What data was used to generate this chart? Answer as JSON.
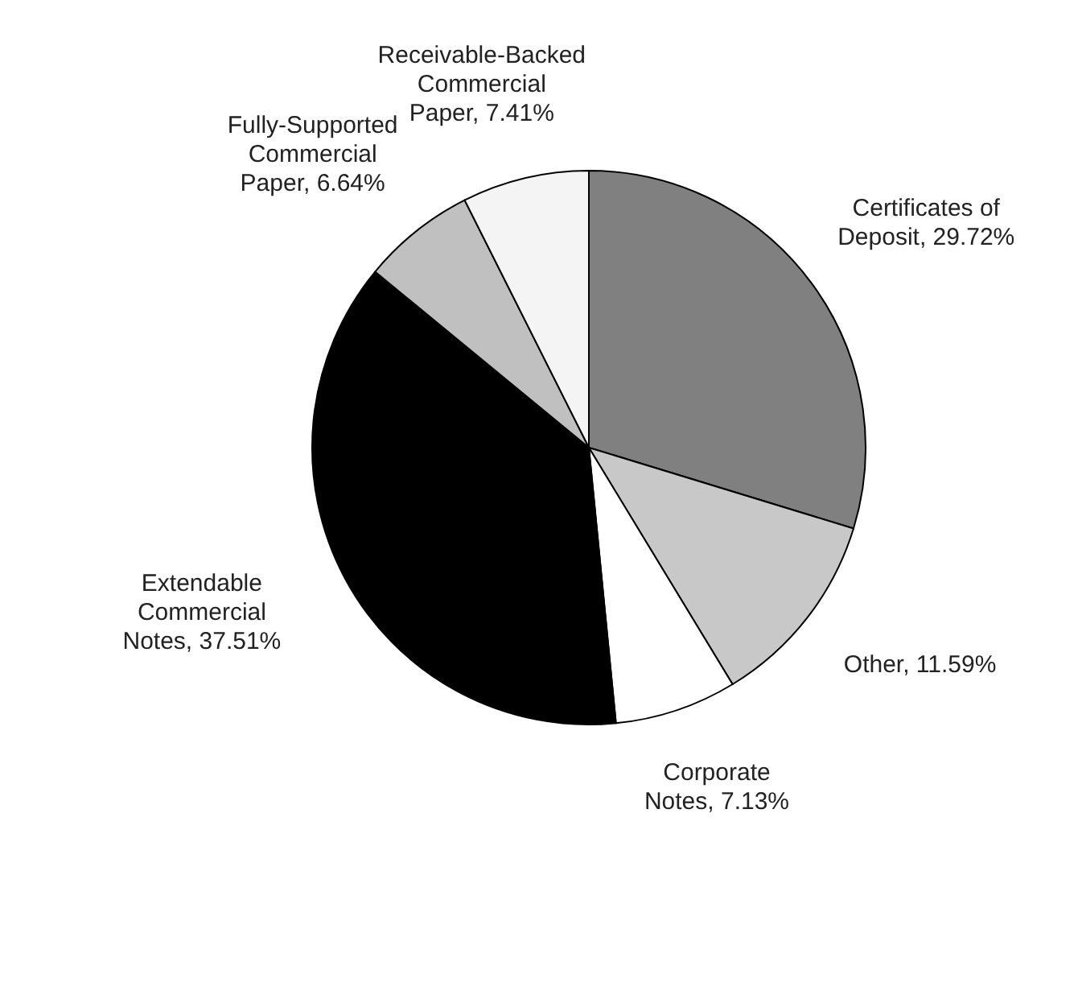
{
  "chart_data": {
    "type": "pie",
    "categories": [
      "Certificates of Deposit",
      "Other",
      "Corporate Notes",
      "Extendable Commercial Notes",
      "Fully-Supported Commercial Paper",
      "Receivable-Backed Commercial Paper"
    ],
    "values": [
      29.72,
      11.59,
      7.13,
      37.51,
      6.64,
      7.41
    ],
    "value_labels": [
      "29.72%",
      "11.59%",
      "7.13%",
      "37.51%",
      "6.64%",
      "7.41%"
    ],
    "colors": [
      "#808080",
      "#c8c8c8",
      "#ffffff",
      "#000000",
      "#c0c0c0",
      "#f4f4f4"
    ]
  }
}
